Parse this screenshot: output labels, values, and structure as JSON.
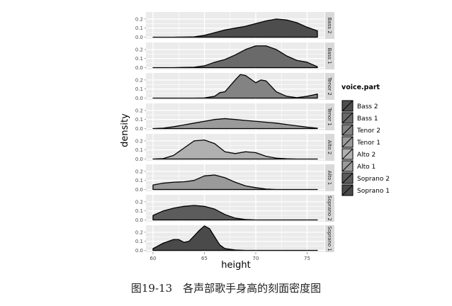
{
  "caption": "图19-13　各声部歌手身高的刻面密度图",
  "chart_data": {
    "type": "area",
    "chart_kind": "faceted density",
    "xlabel": "height",
    "ylabel": "density",
    "xlim": [
      60,
      76
    ],
    "ylim": [
      0,
      0.25
    ],
    "x_ticks": [
      60,
      65,
      70,
      75
    ],
    "y_ticks": [
      "0.0",
      "0.1",
      "0.2"
    ],
    "grid": true,
    "legend": {
      "title": "voice.part",
      "position": "right",
      "items": [
        "Bass 2",
        "Bass 1",
        "Tenor 2",
        "Tenor 1",
        "Alto 2",
        "Alto 1",
        "Soprano 2",
        "Soprano 1"
      ],
      "colors": [
        "#4d4d4d",
        "#6a6a6a",
        "#838383",
        "#9a9a9a",
        "#b0b0b0",
        "#9a9a9a",
        "#5c5c5c",
        "#4a4a4a"
      ]
    },
    "colors": {
      "panel_bg": "#ebebeb",
      "strip_bg": "#d9d9d9",
      "grid": "#ffffff",
      "outline": "#000000"
    },
    "facets": [
      {
        "name": "Bass 2",
        "fill": "#4d4d4d",
        "x": [
          60,
          62,
          64,
          65,
          66,
          67,
          68,
          69,
          70,
          71,
          72,
          73,
          74,
          75,
          76
        ],
        "y": [
          0.0,
          0.0,
          0.004,
          0.02,
          0.05,
          0.08,
          0.1,
          0.12,
          0.15,
          0.18,
          0.2,
          0.19,
          0.16,
          0.11,
          0.07
        ]
      },
      {
        "name": "Bass 1",
        "fill": "#6a6a6a",
        "x": [
          60,
          62,
          64,
          65,
          66,
          67,
          68,
          69,
          70,
          71,
          72,
          73,
          74,
          75,
          76
        ],
        "y": [
          0.0,
          0.0,
          0.005,
          0.02,
          0.06,
          0.09,
          0.14,
          0.2,
          0.24,
          0.24,
          0.2,
          0.13,
          0.08,
          0.06,
          0.01
        ]
      },
      {
        "name": "Tenor 2",
        "fill": "#838383",
        "x": [
          60,
          64,
          65,
          66,
          66.5,
          67,
          68,
          68.5,
          69,
          69.5,
          70,
          70.5,
          71,
          71.5,
          72,
          73,
          74,
          75,
          76
        ],
        "y": [
          0.0,
          0.0,
          0.002,
          0.02,
          0.06,
          0.07,
          0.2,
          0.26,
          0.25,
          0.21,
          0.17,
          0.2,
          0.19,
          0.13,
          0.07,
          0.02,
          0.005,
          0.02,
          0.045
        ]
      },
      {
        "name": "Tenor 1",
        "fill": "#9a9a9a",
        "x": [
          60,
          61,
          62,
          63,
          64,
          65,
          66,
          67,
          68,
          69,
          70,
          71,
          72,
          73,
          74,
          75,
          76
        ],
        "y": [
          0.0,
          0.005,
          0.02,
          0.04,
          0.06,
          0.08,
          0.1,
          0.11,
          0.1,
          0.09,
          0.08,
          0.07,
          0.06,
          0.045,
          0.03,
          0.015,
          0.004
        ]
      },
      {
        "name": "Alto 2",
        "fill": "#b0b0b0",
        "x": [
          60,
          61,
          62,
          63,
          64,
          65,
          66,
          67,
          68,
          69,
          70,
          71,
          72,
          73,
          74,
          75,
          76
        ],
        "y": [
          0.0,
          0.005,
          0.04,
          0.12,
          0.2,
          0.21,
          0.17,
          0.08,
          0.06,
          0.08,
          0.07,
          0.03,
          0.01,
          0.003,
          0.0,
          0.0,
          0.0
        ]
      },
      {
        "name": "Alto 1",
        "fill": "#9a9a9a",
        "x": [
          60,
          61,
          62,
          63,
          64,
          65,
          66,
          67,
          68,
          69,
          70,
          71,
          72,
          73,
          74,
          75,
          76
        ],
        "y": [
          0.05,
          0.07,
          0.08,
          0.085,
          0.1,
          0.15,
          0.16,
          0.13,
          0.08,
          0.04,
          0.02,
          0.005,
          0.0,
          0.0,
          0.0,
          0.0,
          0.0
        ]
      },
      {
        "name": "Soprano 2",
        "fill": "#5c5c5c",
        "x": [
          60,
          61,
          62,
          63,
          64,
          65,
          66,
          67,
          68,
          69,
          70,
          71,
          72,
          73,
          74,
          75,
          76
        ],
        "y": [
          0.05,
          0.1,
          0.13,
          0.15,
          0.16,
          0.15,
          0.12,
          0.06,
          0.02,
          0.005,
          0.0,
          0.0,
          0.0,
          0.0,
          0.0,
          0.0,
          0.0
        ]
      },
      {
        "name": "Soprano 1",
        "fill": "#4a4a4a",
        "x": [
          60,
          61,
          62,
          62.5,
          63,
          63.5,
          64,
          64.5,
          65,
          65.5,
          66,
          66.5,
          67,
          68,
          69,
          70,
          71,
          72,
          73,
          74,
          75,
          76
        ],
        "y": [
          0.02,
          0.08,
          0.12,
          0.12,
          0.09,
          0.1,
          0.16,
          0.22,
          0.27,
          0.24,
          0.15,
          0.06,
          0.02,
          0.005,
          0.0,
          0.0,
          0.0,
          0.0,
          0.0,
          0.0,
          0.0,
          0.0
        ]
      }
    ]
  }
}
